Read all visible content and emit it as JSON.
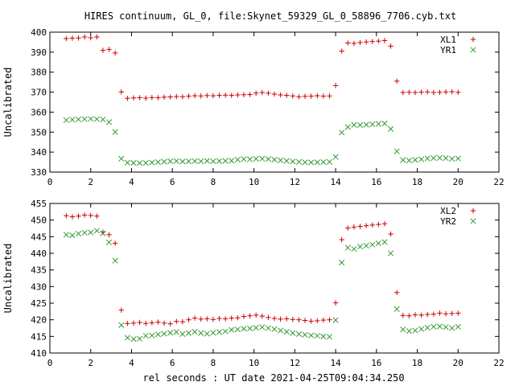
{
  "title": "HIRES continuum, GL_0, file:Skynet_59329_GL_0_58896_7706.cyb.txt",
  "xlabel": "rel seconds : UT date 2021-04-25T09:04:34.250",
  "chart_data": [
    {
      "type": "scatter",
      "ylabel": "Uncalibrated",
      "xlim": [
        0,
        22
      ],
      "ylim": [
        330,
        400
      ],
      "xticks": [
        "0",
        "2",
        "4",
        "6",
        "8",
        "10",
        "12",
        "14",
        "16",
        "18",
        "20",
        "22"
      ],
      "yticks": [
        "330",
        "340",
        "350",
        "360",
        "370",
        "380",
        "390",
        "400"
      ],
      "legend_position": "top-right",
      "series": [
        {
          "name": "XL1",
          "marker": "plus",
          "color": "#cc0000",
          "x": [
            0.8,
            1.03,
            1.26,
            1.49,
            1.72,
            1.95,
            2.18,
            2.41,
            2.64,
            2.87,
            3.1,
            3.33,
            3.56,
            3.79,
            4.02,
            4.25,
            4.48,
            4.71,
            4.94,
            5.17,
            5.4,
            5.63,
            5.86,
            6.09,
            6.32,
            6.55,
            6.78,
            7.01,
            7.24,
            7.47,
            7.7,
            7.93,
            8.16,
            8.39,
            8.62,
            8.85,
            9.08,
            9.31,
            9.54,
            9.77,
            10.0,
            10.23,
            10.46,
            10.69,
            10.92,
            11.15,
            11.38,
            11.61,
            11.84,
            12.07,
            12.3,
            12.53,
            12.76,
            12.99,
            13.22,
            13.45,
            13.68,
            13.91,
            14.14,
            14.37,
            14.6,
            14.83,
            15.06,
            15.29,
            15.52,
            15.75,
            15.98,
            16.21,
            16.44,
            16.67,
            16.9,
            17.13,
            17.36,
            17.59,
            17.82,
            18.05,
            18.28,
            18.51,
            18.74,
            18.97,
            19.2,
            19.43,
            19.66,
            19.89,
            20.12
          ],
          "y": [
            396.8,
            396.9,
            397.0,
            397.2,
            397.4,
            397.1,
            397.3,
            396.2,
            390.9,
            391.5,
            389.6,
            370.0,
            366.9,
            367.1,
            367.2,
            367.0,
            367.1,
            367.3,
            367.2,
            367.5,
            367.4,
            367.6,
            367.8,
            367.7,
            368.0,
            368.2,
            368.1,
            368.3,
            368.2,
            368.4,
            368.5,
            368.3,
            368.4,
            368.6,
            368.5,
            368.7,
            368.8,
            368.6,
            368.7,
            368.9,
            369.4,
            369.6,
            369.8,
            369.5,
            369.2,
            368.8,
            368.5,
            368.3,
            368.1,
            367.9,
            367.6,
            367.8,
            368.0,
            368.1,
            368.2,
            368.0,
            368.1,
            373.2,
            390.4,
            394.5,
            394.3,
            394.6,
            394.8,
            395.0,
            395.2,
            395.4,
            395.6,
            392.9,
            375.3,
            369.8,
            369.9,
            369.7,
            369.9,
            370.0,
            370.0,
            370.1,
            370.2,
            369.8,
            369.6,
            369.7,
            369.9,
            370.0,
            370.2,
            370.0,
            369.8
          ],
          "plot_x": [
            0.8,
            1.1,
            1.4,
            1.7,
            2.0,
            2.3,
            2.6,
            2.9,
            3.2,
            3.5,
            3.8,
            4.1,
            4.4,
            4.7,
            5.0,
            5.3,
            5.6,
            5.9,
            6.2,
            6.5,
            6.8,
            7.1,
            7.4,
            7.7,
            8.0,
            8.3,
            8.6,
            8.9,
            9.2,
            9.5,
            9.8,
            10.1,
            10.4,
            10.7,
            11.0,
            11.3,
            11.6,
            11.9,
            12.2,
            12.5,
            12.8,
            13.1,
            13.4,
            13.7,
            14.0,
            14.3,
            14.6,
            14.9,
            15.2,
            15.5,
            15.8,
            16.1,
            16.4,
            16.7,
            17.0,
            17.3,
            17.6,
            17.9,
            18.2,
            18.5,
            18.8,
            19.1,
            19.4,
            19.7,
            20.0
          ],
          "plot_y": [
            396.8,
            397.0,
            397.1,
            397.6,
            397.2,
            397.6,
            390.9,
            391.4,
            389.6,
            370.1,
            366.9,
            367.1,
            367.2,
            367.0,
            367.3,
            367.2,
            367.5,
            367.6,
            367.8,
            367.7,
            368.0,
            368.2,
            368.1,
            368.3,
            368.2,
            368.4,
            368.5,
            368.4,
            368.6,
            368.7,
            368.8,
            369.5,
            369.8,
            369.5,
            369.0,
            368.6,
            368.4,
            368.1,
            367.7,
            367.9,
            368.0,
            368.2,
            368.0,
            368.1,
            373.3,
            390.5,
            394.6,
            394.4,
            394.8,
            395.1,
            395.3,
            395.5,
            395.8,
            393.0,
            375.5,
            369.8,
            369.9,
            369.8,
            370.0,
            370.1,
            369.8,
            369.9,
            370.1,
            370.2,
            369.9
          ]
        },
        {
          "name": "YR1",
          "marker": "cross",
          "color": "#339933",
          "plot_x": [
            0.8,
            1.1,
            1.4,
            1.7,
            2.0,
            2.3,
            2.6,
            2.9,
            3.2,
            3.5,
            3.8,
            4.1,
            4.4,
            4.7,
            5.0,
            5.3,
            5.6,
            5.9,
            6.2,
            6.5,
            6.8,
            7.1,
            7.4,
            7.7,
            8.0,
            8.3,
            8.6,
            8.9,
            9.2,
            9.5,
            9.8,
            10.1,
            10.4,
            10.7,
            11.0,
            11.3,
            11.6,
            11.9,
            12.2,
            12.5,
            12.8,
            13.1,
            13.4,
            13.7,
            14.0,
            14.3,
            14.6,
            14.9,
            15.2,
            15.5,
            15.8,
            16.1,
            16.4,
            16.7,
            17.0,
            17.3,
            17.6,
            17.9,
            18.2,
            18.5,
            18.8,
            19.1,
            19.4,
            19.7,
            20.0
          ],
          "plot_y": [
            356.0,
            356.2,
            356.4,
            356.5,
            356.6,
            356.5,
            356.3,
            355.0,
            350.1,
            336.7,
            334.7,
            334.6,
            334.5,
            334.6,
            334.8,
            335.0,
            335.2,
            335.4,
            335.5,
            335.3,
            335.4,
            335.5,
            335.4,
            335.6,
            335.4,
            335.5,
            335.6,
            335.7,
            336.2,
            336.5,
            336.4,
            336.6,
            336.7,
            336.5,
            336.2,
            335.9,
            335.6,
            335.3,
            335.1,
            334.9,
            334.8,
            334.9,
            335.0,
            335.1,
            337.6,
            349.8,
            352.5,
            353.6,
            353.5,
            353.7,
            353.9,
            354.1,
            354.3,
            351.6,
            340.4,
            336.0,
            335.8,
            336.1,
            336.4,
            336.8,
            337.0,
            337.1,
            337.0,
            336.6,
            336.8
          ]
        }
      ]
    },
    {
      "type": "scatter",
      "ylabel": "Uncalibrated",
      "xlim": [
        0,
        22
      ],
      "ylim": [
        410,
        455
      ],
      "xticks": [
        "0",
        "2",
        "4",
        "6",
        "8",
        "10",
        "12",
        "14",
        "16",
        "18",
        "20",
        "22"
      ],
      "yticks": [
        "410",
        "415",
        "420",
        "425",
        "430",
        "435",
        "440",
        "445",
        "450",
        "455"
      ],
      "legend_position": "top-right",
      "series": [
        {
          "name": "XL2",
          "marker": "plus",
          "color": "#cc0000",
          "plot_x": [
            0.8,
            1.1,
            1.4,
            1.7,
            2.0,
            2.3,
            2.6,
            2.9,
            3.2,
            3.5,
            3.8,
            4.1,
            4.4,
            4.7,
            5.0,
            5.3,
            5.6,
            5.9,
            6.2,
            6.5,
            6.8,
            7.1,
            7.4,
            7.7,
            8.0,
            8.3,
            8.6,
            8.9,
            9.2,
            9.5,
            9.8,
            10.1,
            10.4,
            10.7,
            11.0,
            11.3,
            11.6,
            11.9,
            12.2,
            12.5,
            12.8,
            13.1,
            13.4,
            13.7,
            14.0,
            14.3,
            14.6,
            14.9,
            15.2,
            15.5,
            15.8,
            16.1,
            16.4,
            16.7,
            17.0,
            17.3,
            17.6,
            17.9,
            18.2,
            18.5,
            18.8,
            19.1,
            19.4,
            19.7,
            20.0
          ],
          "plot_y": [
            451.3,
            451.0,
            451.2,
            451.5,
            451.4,
            451.2,
            446.4,
            445.6,
            443.0,
            422.9,
            418.9,
            419.0,
            419.2,
            418.9,
            419.1,
            419.3,
            419.0,
            418.8,
            419.5,
            419.4,
            420.0,
            420.5,
            420.2,
            420.3,
            420.1,
            420.4,
            420.3,
            420.5,
            420.6,
            421.0,
            421.2,
            421.4,
            421.1,
            420.7,
            420.4,
            420.2,
            420.3,
            420.1,
            420.0,
            419.8,
            419.6,
            419.7,
            419.9,
            420.0,
            425.1,
            444.1,
            447.6,
            447.9,
            448.1,
            448.3,
            448.5,
            448.7,
            448.9,
            445.8,
            428.2,
            421.3,
            421.2,
            421.5,
            421.4,
            421.6,
            421.7,
            422.0,
            421.8,
            421.9,
            422.0
          ]
        },
        {
          "name": "YR2",
          "marker": "cross",
          "color": "#339933",
          "plot_x": [
            0.8,
            1.1,
            1.4,
            1.7,
            2.0,
            2.3,
            2.6,
            2.9,
            3.2,
            3.5,
            3.8,
            4.1,
            4.4,
            4.7,
            5.0,
            5.3,
            5.6,
            5.9,
            6.2,
            6.5,
            6.8,
            7.1,
            7.4,
            7.7,
            8.0,
            8.3,
            8.6,
            8.9,
            9.2,
            9.5,
            9.8,
            10.1,
            10.4,
            10.7,
            11.0,
            11.3,
            11.6,
            11.9,
            12.2,
            12.5,
            12.8,
            13.1,
            13.4,
            13.7,
            14.0,
            14.3,
            14.6,
            14.9,
            15.2,
            15.5,
            15.8,
            16.1,
            16.4,
            16.7,
            17.0,
            17.3,
            17.6,
            17.9,
            18.2,
            18.5,
            18.8,
            19.1,
            19.4,
            19.7,
            20.0
          ],
          "plot_y": [
            445.6,
            445.4,
            445.9,
            446.2,
            446.3,
            446.8,
            446.0,
            443.3,
            437.8,
            418.4,
            414.6,
            414.2,
            414.3,
            415.2,
            415.3,
            415.6,
            415.8,
            416.1,
            416.3,
            415.7,
            416.0,
            416.4,
            416.0,
            415.8,
            416.1,
            416.3,
            416.5,
            417.0,
            417.1,
            417.3,
            417.4,
            417.6,
            417.8,
            417.5,
            417.2,
            416.8,
            416.4,
            416.0,
            415.7,
            415.5,
            415.3,
            415.2,
            415.0,
            414.9,
            419.9,
            437.2,
            441.7,
            441.3,
            442.0,
            442.3,
            442.6,
            443.0,
            443.4,
            440.0,
            423.2,
            417.1,
            416.6,
            416.8,
            417.2,
            417.6,
            417.9,
            418.0,
            417.8,
            417.5,
            417.9
          ]
        }
      ]
    }
  ]
}
